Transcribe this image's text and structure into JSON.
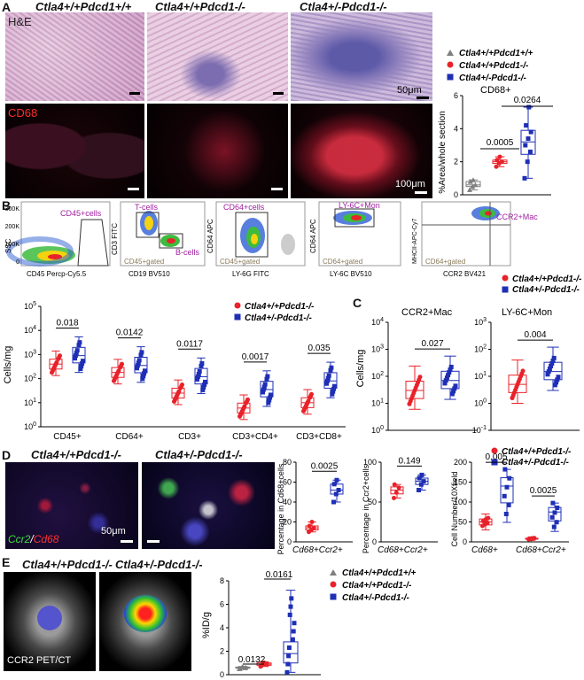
{
  "panelA": {
    "letter": "A",
    "genotypes": [
      "Ctla4+/+Pdcd1+/+",
      "Ctla4+/+Pdcd1-/-",
      "Ctla4+/-Pdcd1-/-"
    ],
    "he_label": "H&E",
    "cd68_label": "CD68",
    "scale_he": "50μm",
    "scale_cd68": "100μm",
    "legend": [
      "Ctla4+/+Pdcd1+/+",
      "Ctla4+/+Pdcd1-/-",
      "Ctla4+/-Pdcd1-/-"
    ],
    "plot_title": "CD68+",
    "ylabel": "%Area/whole section",
    "pvals": [
      "0.0005",
      "0.0264"
    ]
  },
  "panelB": {
    "letter": "B",
    "gates": {
      "g1_pop": "CD45+cells",
      "g1_y": "SSC",
      "g1_x": "CD45 Percp-Cy5.5",
      "g1_ticks": [
        "300K",
        "200K",
        "100K",
        "0"
      ],
      "g2_t": "T-cells",
      "g2_b": "B-cells",
      "g2_gate": "CD45+gated",
      "g2_y": "CD3 FITC",
      "g2_x": "CD19 BV510",
      "g3_pop": "CD64+cells",
      "g3_gate": "CD45+gated",
      "g3_y": "CD64 APC",
      "g3_x": "LY-6G FITC",
      "g4_pop": "LY-6C+Mon",
      "g4_gate": "CD64+gated",
      "g4_y": "CD64 APC",
      "g4_x": "LY-6C BV510",
      "g5_pop": "CCR2+Mac",
      "g5_gate": "CD64+gated",
      "g5_y": "MHCII-APC-Cy7",
      "g5_x": "CCR2 BV421"
    },
    "legend": [
      "Ctla4+/+Pdcd1-/-",
      "Ctla4+/-Pdcd1-/-"
    ],
    "ylabel": "Cells/mg",
    "yticks": [
      "10^5",
      "10^4",
      "10^3",
      "10^2",
      "10^1",
      "10^0"
    ],
    "categories": [
      "CD45+",
      "CD64+",
      "CD3+",
      "CD3+CD4+",
      "CD3+CD8+"
    ],
    "pvals": [
      "0.018",
      "0.0142",
      "0.0117",
      "0.0017",
      "0.035"
    ]
  },
  "panelC": {
    "letter": "C",
    "t1": "CCR2+Mac",
    "t2": "LY-6C+Mon",
    "ylabel": "Cells/mg",
    "p1": "0.027",
    "p2": "0.004",
    "yticks1": [
      "10^4",
      "10^3",
      "10^2",
      "10^1",
      "10^0"
    ],
    "yticks2": [
      "10^3",
      "10^2",
      "10^1",
      "10^0",
      "10^-1"
    ]
  },
  "panelD": {
    "letter": "D",
    "genotypes": [
      "Ctla4+/+Pdcd1-/-",
      "Ctla4+/-Pdcd1-/-"
    ],
    "stain_green": "Ccr2",
    "stain_red": "Cd68",
    "scale": "50μm",
    "legend": [
      "Ctla4+/+Pdcd1-/-",
      "Ctla4+/-Pdcd1-/-"
    ],
    "plot1_ylabel": "Percentage in Cd68+cells",
    "plot1_x": "Cd68+Ccr2+",
    "plot1_p": "0.0025",
    "plot2_ylabel": "Percentage in Ccr2+cells",
    "plot2_x": "Cd68+Ccr2+",
    "plot2_p": "0.149",
    "plot3_ylabel": "Cell Number/10Xfield",
    "plot3_x1": "Cd68+",
    "plot3_x2": "Cd68+Ccr2+",
    "plot3_p1": "0.005",
    "plot3_p2": "0.0025"
  },
  "panelE": {
    "letter": "E",
    "genotypes": [
      "Ctla4+/+Pdcd1-/-",
      "Ctla4+/-Pdcd1-/-"
    ],
    "modality": "CCR2 PET/CT",
    "legend": [
      "Ctla4+/+Pdcd1+/+",
      "Ctla4+/+Pdcd1-/-",
      "Ctla4+/-Pdcd1-/-"
    ],
    "ylabel": "%ID/g",
    "pvals": [
      "0.0132",
      "0.0161"
    ]
  },
  "colors": {
    "wt": "#7f7f7f",
    "pd1": "#e8222a",
    "ctla": "#1e2fb5",
    "gate_text": "#a020a0"
  },
  "chart_data": [
    {
      "type": "box",
      "title": "CD68+",
      "ylabel": "%Area/whole section",
      "ylim": [
        0,
        6
      ],
      "series": [
        {
          "name": "Ctla4+/+Pdcd1+/+",
          "values": [
            0.3,
            0.5,
            0.6,
            0.8,
            0.9
          ]
        },
        {
          "name": "Ctla4+/+Pdcd1-/-",
          "values": [
            1.7,
            1.9,
            2.0,
            2.1,
            2.3
          ]
        },
        {
          "name": "Ctla4+/-Pdcd1-/-",
          "values": [
            1.0,
            2.0,
            2.6,
            3.0,
            3.4,
            3.8,
            4.2,
            5.3
          ]
        }
      ]
    },
    {
      "type": "box",
      "ylabel": "Cells/mg",
      "scale": "log",
      "ylim": [
        1,
        100000
      ],
      "categories": [
        "CD45+",
        "CD64+",
        "CD3+",
        "CD3+CD4+",
        "CD3+CD8+"
      ],
      "series": [
        {
          "name": "Ctla4+/+Pdcd1-/-",
          "medians": [
            400,
            180,
            25,
            6,
            10
          ]
        },
        {
          "name": "Ctla4+/-Pdcd1-/-",
          "medians": [
            900,
            350,
            120,
            35,
            80
          ]
        }
      ]
    },
    {
      "type": "box",
      "title": "CCR2+Mac",
      "ylabel": "Cells/mg",
      "scale": "log",
      "ylim": [
        1,
        10000
      ],
      "series": [
        {
          "name": "Ctla4+/+Pdcd1-/-",
          "median": 30
        },
        {
          "name": "Ctla4+/-Pdcd1-/-",
          "median": 70
        }
      ]
    },
    {
      "type": "box",
      "title": "LY-6C+Mon",
      "ylabel": "Cells/mg",
      "scale": "log",
      "ylim": [
        0.1,
        1000
      ],
      "series": [
        {
          "name": "Ctla4+/+Pdcd1-/-",
          "median": 5
        },
        {
          "name": "Ctla4+/-Pdcd1-/-",
          "median": 15
        }
      ]
    },
    {
      "type": "box",
      "ylabel": "Percentage in Cd68+cells",
      "ylim": [
        0,
        80
      ],
      "series": [
        {
          "name": "Ctla4+/+Pdcd1-/-",
          "values": [
            10,
            12,
            14,
            16,
            20
          ]
        },
        {
          "name": "Ctla4+/-Pdcd1-/-",
          "values": [
            40,
            48,
            52,
            58,
            62
          ]
        }
      ]
    },
    {
      "type": "box",
      "ylabel": "Percentage in Ccr2+cells",
      "ylim": [
        0,
        100
      ],
      "series": [
        {
          "name": "Ctla4+/+Pdcd1-/-",
          "values": [
            55,
            62,
            68,
            72
          ]
        },
        {
          "name": "Ctla4+/-Pdcd1-/-",
          "values": [
            65,
            72,
            76,
            80,
            84
          ]
        }
      ]
    },
    {
      "type": "box",
      "ylabel": "Cell Number/10Xfield",
      "ylim": [
        0,
        200
      ],
      "categories": [
        "Cd68+",
        "Cd68+Ccr2+"
      ],
      "series": [
        {
          "name": "Ctla4+/+Pdcd1-/-",
          "medians": [
            50,
            8
          ]
        },
        {
          "name": "Ctla4+/-Pdcd1-/-",
          "medians": [
            140,
            75
          ]
        }
      ]
    },
    {
      "type": "box",
      "ylabel": "%ID/g",
      "ylim": [
        0,
        8
      ],
      "series": [
        {
          "name": "Ctla4+/+Pdcd1+/+",
          "median": 0.6
        },
        {
          "name": "Ctla4+/+Pdcd1-/-",
          "median": 0.9
        },
        {
          "name": "Ctla4+/-Pdcd1-/-",
          "median": 1.8
        }
      ]
    }
  ]
}
